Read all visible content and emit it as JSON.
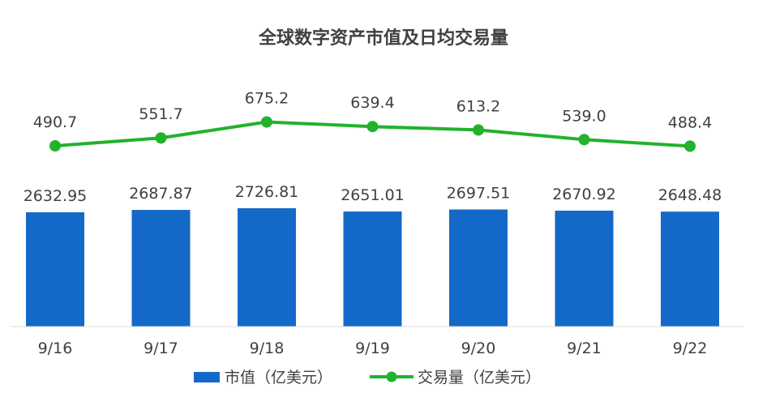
{
  "chart_data": {
    "type": "bar",
    "title": "全球数字资产市值及日均交易量",
    "categories": [
      "9/16",
      "9/17",
      "9/18",
      "9/19",
      "9/20",
      "9/21",
      "9/22"
    ],
    "series": [
      {
        "name": "市值（亿美元）",
        "type": "bar",
        "color": "#1469c8",
        "values": [
          2632.95,
          2687.87,
          2726.81,
          2651.01,
          2697.51,
          2670.92,
          2648.48
        ],
        "labels": [
          "2632.95",
          "2687.87",
          "2726.81",
          "2651.01",
          "2697.51",
          "2670.92",
          "2648.48"
        ]
      },
      {
        "name": "交易量（亿美元）",
        "type": "line",
        "color": "#22b22c",
        "values": [
          490.7,
          551.7,
          675.2,
          639.4,
          613.2,
          539.0,
          488.4
        ],
        "labels": [
          "490.7",
          "551.7",
          "675.2",
          "639.4",
          "613.2",
          "539.0",
          "488.4"
        ]
      }
    ],
    "legend_position": "bottom",
    "grid": false
  }
}
